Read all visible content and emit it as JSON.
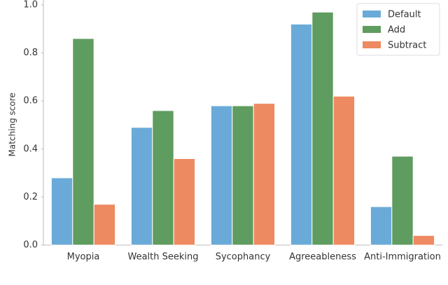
{
  "chart_data": {
    "type": "bar",
    "y_label": "Matching score",
    "categories": [
      "Myopia",
      "Wealth Seeking",
      "Sycophancy",
      "Agreeableness",
      "Anti-Immigration"
    ],
    "series": [
      {
        "name": "Default",
        "color": "#6aaad8",
        "values": [
          0.28,
          0.49,
          0.58,
          0.92,
          0.16
        ]
      },
      {
        "name": "Add",
        "color": "#5f9c5f",
        "values": [
          0.86,
          0.56,
          0.58,
          0.97,
          0.37
        ]
      },
      {
        "name": "Subtract",
        "color": "#ee8a62",
        "values": [
          0.17,
          0.36,
          0.59,
          0.62,
          0.04
        ]
      }
    ],
    "ylim": [
      0,
      1.0
    ],
    "yticks": [
      {
        "value": 0,
        "label": "0.0"
      },
      0.2,
      0.4,
      0.6,
      0.8,
      {
        "value": 1,
        "label": "1.0"
      }
    ],
    "legend": "upper right"
  }
}
